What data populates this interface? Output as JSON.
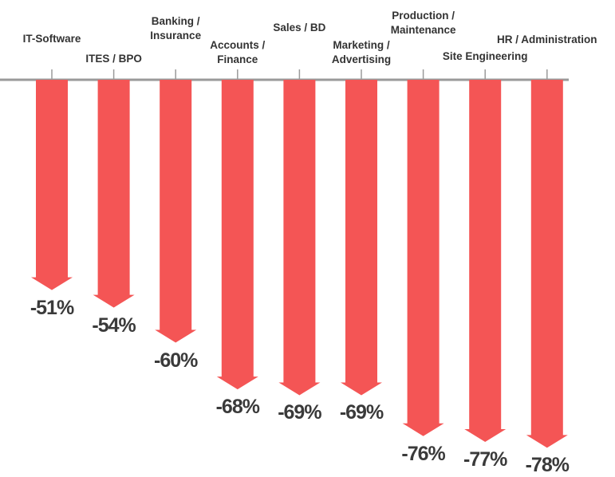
{
  "chart_data": {
    "type": "bar",
    "categories": [
      "IT-Software",
      "ITES / BPO",
      "Banking /\nInsurance",
      "Accounts /\nFinance",
      "Sales / BD",
      "Marketing /\nAdvertising",
      "Production /\nMaintenance",
      "Site Engineering",
      "HR / Administration"
    ],
    "values": [
      -51,
      -54,
      -60,
      -68,
      -69,
      -69,
      -76,
      -77,
      -78
    ],
    "value_labels": [
      "-51%",
      "-54%",
      "-60%",
      "-68%",
      "-69%",
      "-69%",
      "-76%",
      "-77%",
      "-78%"
    ],
    "color": "#f45555",
    "ylim": [
      -15,
      -80
    ]
  }
}
